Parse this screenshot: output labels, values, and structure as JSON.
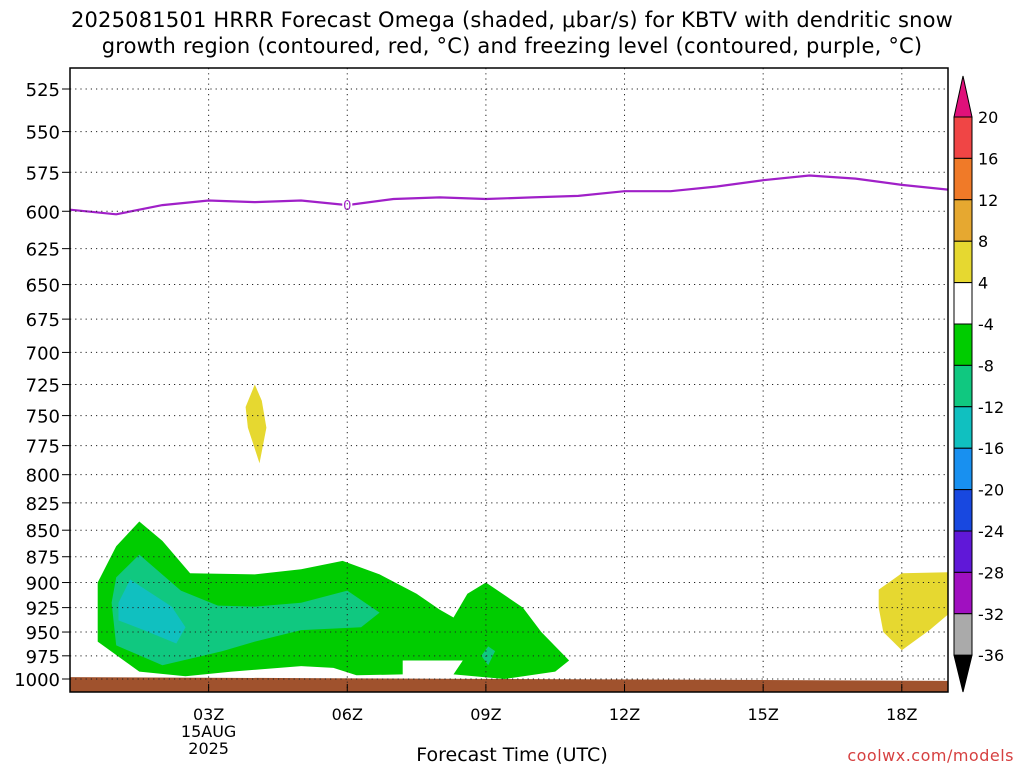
{
  "chart_data": {
    "type": "heatmap",
    "title_line1": "2025081501 HRRR Forecast Omega (shaded, μbar/s) for KBTV with dendritic snow",
    "title_line2": "growth region (contoured, red, °C) and freezing level (contoured, purple, °C)",
    "xlabel": "Forecast Time (UTC)",
    "ylabel": "",
    "x_ticks": [
      "03Z",
      "06Z",
      "09Z",
      "12Z",
      "15Z",
      "18Z"
    ],
    "x_tick_hours": [
      3,
      6,
      9,
      12,
      15,
      18
    ],
    "x_range_hours": [
      0,
      19
    ],
    "x_sublabel": [
      "15AUG",
      "2025"
    ],
    "y_axis": "pressure (hPa), inverted, log scale",
    "y_ticks": [
      525,
      550,
      575,
      600,
      625,
      650,
      675,
      700,
      725,
      750,
      775,
      800,
      825,
      850,
      875,
      900,
      925,
      950,
      975,
      1000
    ],
    "y_range": [
      510,
      1010
    ],
    "grid": "dotted",
    "colorbar": {
      "units": "μbar/s",
      "labels": [
        "20",
        "16",
        "12",
        "8",
        "4",
        "-4",
        "-8",
        "-12",
        "-16",
        "-20",
        "-24",
        "-28",
        "-32",
        "-36"
      ],
      "bins": [
        {
          "range": ">20",
          "color": "#e0107a"
        },
        {
          "range": "16 to 20",
          "color": "#f04545"
        },
        {
          "range": "12 to 16",
          "color": "#f07a28"
        },
        {
          "range": "8 to 12",
          "color": "#e6a830"
        },
        {
          "range": "4 to 8",
          "color": "#e6d830"
        },
        {
          "range": "-4 to 4",
          "color": "#ffffff"
        },
        {
          "range": "-8 to -4",
          "color": "#00cc00"
        },
        {
          "range": "-12 to -8",
          "color": "#10c880"
        },
        {
          "range": "-16 to -12",
          "color": "#10c0c0"
        },
        {
          "range": "-20 to -16",
          "color": "#1890f0"
        },
        {
          "range": "-24 to -20",
          "color": "#1848e0"
        },
        {
          "range": "-28 to -24",
          "color": "#6018d8"
        },
        {
          "range": "-32 to -28",
          "color": "#a010c0"
        },
        {
          "range": "-36 to -32",
          "color": "#aaaaaa"
        },
        {
          "range": "<-36",
          "color": "#000000"
        }
      ]
    },
    "freezing_level": {
      "label": "0",
      "color": "#a020c8",
      "points_hour_hpa": [
        [
          0,
          599
        ],
        [
          1,
          602
        ],
        [
          2,
          596
        ],
        [
          3,
          593
        ],
        [
          4,
          594
        ],
        [
          5,
          593
        ],
        [
          6,
          596
        ],
        [
          7,
          592
        ],
        [
          8,
          591
        ],
        [
          9,
          592
        ],
        [
          10,
          591
        ],
        [
          11,
          590
        ],
        [
          12,
          587
        ],
        [
          13,
          587
        ],
        [
          14,
          584
        ],
        [
          15,
          580
        ],
        [
          16,
          577
        ],
        [
          17,
          579
        ],
        [
          18,
          583
        ],
        [
          19,
          586
        ]
      ]
    },
    "omega_regions": [
      {
        "name": "green -4 to -8 low-level",
        "color": "#00cc00",
        "points_hour_hpa": [
          [
            0.6,
            900
          ],
          [
            1.0,
            865
          ],
          [
            1.5,
            842
          ],
          [
            2.0,
            860
          ],
          [
            2.6,
            891
          ],
          [
            4.0,
            892
          ],
          [
            5.0,
            887
          ],
          [
            5.9,
            879
          ],
          [
            6.7,
            892
          ],
          [
            7.5,
            911
          ],
          [
            8.0,
            927
          ],
          [
            8.3,
            935
          ],
          [
            8.6,
            911
          ],
          [
            9.0,
            900
          ],
          [
            9.8,
            925
          ],
          [
            10.2,
            950
          ],
          [
            10.8,
            980
          ],
          [
            10.5,
            992
          ],
          [
            9.4,
            1000
          ],
          [
            8.3,
            995
          ],
          [
            8.5,
            980
          ],
          [
            7.2,
            980
          ],
          [
            7.2,
            995
          ],
          [
            6.2,
            996
          ],
          [
            5.7,
            988
          ],
          [
            5.0,
            986
          ],
          [
            3.5,
            992
          ],
          [
            2.5,
            997
          ],
          [
            1.5,
            992
          ],
          [
            0.6,
            960
          ]
        ]
      },
      {
        "name": "teal -8 to -12",
        "color": "#10c880",
        "points_hour_hpa": [
          [
            0.9,
            920
          ],
          [
            1.0,
            895
          ],
          [
            1.5,
            873
          ],
          [
            2.4,
            908
          ],
          [
            3.2,
            923
          ],
          [
            4.0,
            924
          ],
          [
            5.0,
            920
          ],
          [
            6.0,
            908
          ],
          [
            6.7,
            930
          ],
          [
            6.3,
            945
          ],
          [
            5.0,
            948
          ],
          [
            4.0,
            960
          ],
          [
            3.3,
            970
          ],
          [
            2.0,
            985
          ],
          [
            1.0,
            964
          ]
        ]
      },
      {
        "name": "teal -8 to -12 near 09Z",
        "color": "#10c880",
        "points_hour_hpa": [
          [
            9.05,
            965
          ],
          [
            9.2,
            970
          ],
          [
            9.05,
            985
          ],
          [
            8.9,
            975
          ]
        ]
      },
      {
        "name": "cyan -12 to -16",
        "color": "#10c0c0",
        "points_hour_hpa": [
          [
            1.05,
            920
          ],
          [
            1.3,
            897
          ],
          [
            2.2,
            924
          ],
          [
            2.5,
            945
          ],
          [
            2.3,
            962
          ],
          [
            1.6,
            948
          ],
          [
            1.05,
            938
          ]
        ]
      },
      {
        "name": "yellow 4 to 8 midlevel",
        "color": "#e6d830",
        "points_hour_hpa": [
          [
            4.0,
            725
          ],
          [
            4.15,
            738
          ],
          [
            4.25,
            760
          ],
          [
            4.1,
            790
          ],
          [
            3.85,
            760
          ],
          [
            3.8,
            743
          ]
        ]
      },
      {
        "name": "yellow 4 to 8 low-level",
        "color": "#e6d830",
        "points_hour_hpa": [
          [
            17.5,
            907
          ],
          [
            18.0,
            891
          ],
          [
            19.0,
            890
          ],
          [
            19.0,
            932
          ],
          [
            18.6,
            948
          ],
          [
            18.0,
            969
          ],
          [
            17.6,
            950
          ],
          [
            17.5,
            925
          ]
        ]
      }
    ],
    "ground": {
      "color": "#a0522d",
      "top_hpa_left": 998,
      "top_hpa_right": 1002
    }
  },
  "watermark": "coolwx.com/models"
}
